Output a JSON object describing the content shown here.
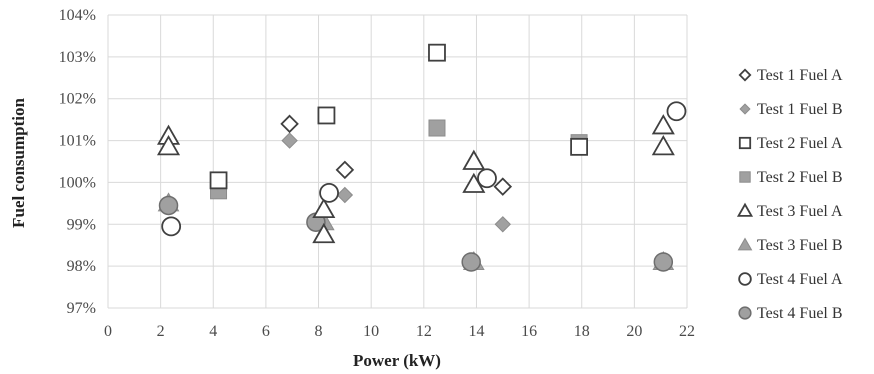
{
  "chart_data": {
    "type": "scatter",
    "xlabel": "Power (kW)",
    "ylabel": "Fuel consumption",
    "xlim": [
      0,
      22
    ],
    "ylim": [
      97,
      104
    ],
    "x_ticks": [
      "0",
      "2",
      "4",
      "6",
      "8",
      "10",
      "12",
      "14",
      "16",
      "18",
      "20",
      "22"
    ],
    "y_ticks": [
      "97%",
      "98%",
      "99%",
      "100%",
      "101%",
      "102%",
      "103%",
      "104%"
    ],
    "grid": "on",
    "legend_position": "right",
    "series": [
      {
        "name": "Test 1 Fuel A",
        "marker": "diamond",
        "fill": "open",
        "points": [
          {
            "x": 6.9,
            "y": 101.4
          },
          {
            "x": 9.0,
            "y": 100.3
          },
          {
            "x": 15.0,
            "y": 99.9
          }
        ]
      },
      {
        "name": "Test 1 Fuel B",
        "marker": "diamond",
        "fill": "filled",
        "points": [
          {
            "x": 6.9,
            "y": 101.0
          },
          {
            "x": 9.0,
            "y": 99.7
          },
          {
            "x": 15.0,
            "y": 99.0
          }
        ]
      },
      {
        "name": "Test 2 Fuel A",
        "marker": "square",
        "fill": "open",
        "points": [
          {
            "x": 4.2,
            "y": 100.05
          },
          {
            "x": 8.3,
            "y": 101.6
          },
          {
            "x": 12.5,
            "y": 103.1
          },
          {
            "x": 17.9,
            "y": 100.85
          }
        ]
      },
      {
        "name": "Test 2 Fuel B",
        "marker": "square",
        "fill": "filled",
        "points": [
          {
            "x": 4.2,
            "y": 99.8
          },
          {
            "x": 12.5,
            "y": 101.3
          },
          {
            "x": 17.9,
            "y": 100.95
          }
        ]
      },
      {
        "name": "Test 3 Fuel A",
        "marker": "triangle",
        "fill": "open",
        "points": [
          {
            "x": 2.3,
            "y": 101.1
          },
          {
            "x": 2.3,
            "y": 100.85
          },
          {
            "x": 8.2,
            "y": 99.35
          },
          {
            "x": 8.2,
            "y": 98.75
          },
          {
            "x": 13.9,
            "y": 100.5
          },
          {
            "x": 13.9,
            "y": 99.95
          },
          {
            "x": 21.1,
            "y": 101.35
          },
          {
            "x": 21.1,
            "y": 100.85
          }
        ]
      },
      {
        "name": "Test 3 Fuel B",
        "marker": "triangle",
        "fill": "filled",
        "points": [
          {
            "x": 2.3,
            "y": 99.5
          },
          {
            "x": 8.2,
            "y": 99.05
          },
          {
            "x": 13.9,
            "y": 98.1
          },
          {
            "x": 21.1,
            "y": 98.1
          }
        ]
      },
      {
        "name": "Test 4 Fuel A",
        "marker": "circle",
        "fill": "open",
        "points": [
          {
            "x": 2.4,
            "y": 98.95
          },
          {
            "x": 8.4,
            "y": 99.75
          },
          {
            "x": 14.4,
            "y": 100.1
          },
          {
            "x": 21.6,
            "y": 101.7
          }
        ]
      },
      {
        "name": "Test 4 Fuel B",
        "marker": "circle",
        "fill": "filled",
        "points": [
          {
            "x": 2.3,
            "y": 99.45
          },
          {
            "x": 7.9,
            "y": 99.05
          },
          {
            "x": 13.8,
            "y": 98.1
          },
          {
            "x": 21.1,
            "y": 98.1
          }
        ]
      }
    ]
  },
  "colors": {
    "stroke": "#404040",
    "filled_fill": "#a0a0a0",
    "grid": "#d9d9d9"
  }
}
